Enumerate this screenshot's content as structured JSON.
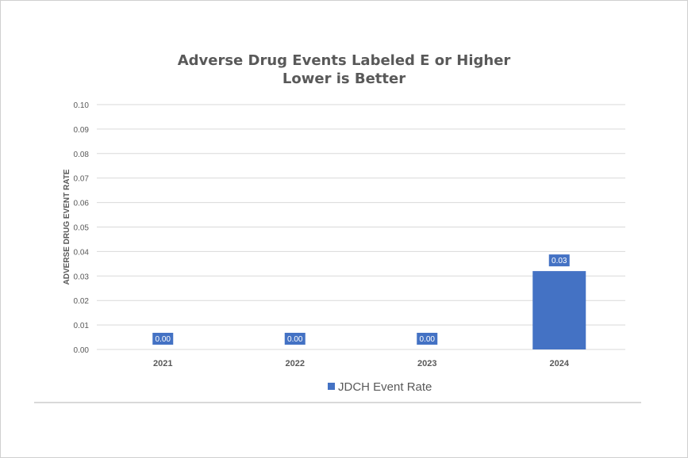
{
  "chart_data": {
    "type": "bar",
    "title": "Adverse Drug Events Labeled E or Higher",
    "subtitle": "Lower is Better",
    "xlabel": "",
    "ylabel": "ADVERSE DRUG EVENT RATE",
    "categories": [
      "2021",
      "2022",
      "2023",
      "2024"
    ],
    "series": [
      {
        "name": "JDCH Event Rate",
        "values": [
          0.0,
          0.0,
          0.0,
          0.032
        ],
        "data_labels": [
          "0.00",
          "0.00",
          "0.00",
          "0.03"
        ]
      }
    ],
    "ylim": [
      0,
      0.1
    ],
    "yticks": [
      "0.00",
      "0.01",
      "0.02",
      "0.03",
      "0.04",
      "0.05",
      "0.06",
      "0.07",
      "0.08",
      "0.09",
      "0.10"
    ],
    "grid": true,
    "legend": "bottom",
    "colors": {
      "bar": "#4472c4",
      "grid": "#d9d9d9",
      "text": "#595959"
    }
  }
}
